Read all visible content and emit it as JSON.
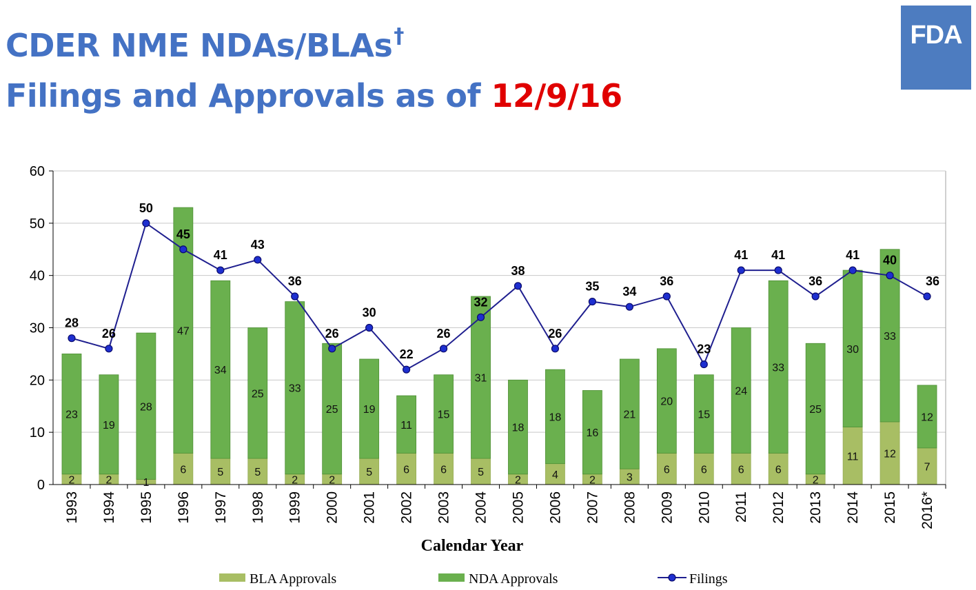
{
  "header": {
    "title_line1": "CDER NME NDAs/BLAs",
    "title_dagger": "†",
    "title_line2_prefix": "Filings and Approvals as of ",
    "title_line2_date": "12/9/16",
    "title_color": "#4472C4",
    "date_color": "#E00000"
  },
  "logo": {
    "text": "FDA",
    "color": "#4D7CC0"
  },
  "chart_data": {
    "type": "bar",
    "stacked": true,
    "categories": [
      "1993",
      "1994",
      "1995",
      "1996",
      "1997",
      "1998",
      "1999",
      "2000",
      "2001",
      "2002",
      "2003",
      "2004",
      "2005",
      "2006",
      "2007",
      "2008",
      "2009",
      "2010",
      "2011",
      "2012",
      "2013",
      "2014",
      "2015",
      "2016*"
    ],
    "series": [
      {
        "name": "BLA Approvals",
        "kind": "bar",
        "color": "#A8BE64",
        "values": [
          2,
          2,
          1,
          6,
          5,
          5,
          2,
          2,
          5,
          6,
          6,
          5,
          2,
          4,
          2,
          3,
          6,
          6,
          6,
          6,
          2,
          11,
          12,
          7
        ]
      },
      {
        "name": "NDA Approvals",
        "kind": "bar",
        "color": "#6AB04E",
        "values": [
          23,
          19,
          28,
          47,
          34,
          25,
          33,
          25,
          19,
          11,
          15,
          31,
          18,
          18,
          16,
          21,
          20,
          15,
          24,
          33,
          25,
          30,
          33,
          12
        ]
      },
      {
        "name": "Filings",
        "kind": "line",
        "color": "#1F1F8F",
        "values": [
          28,
          26,
          50,
          45,
          41,
          43,
          36,
          26,
          30,
          22,
          26,
          32,
          38,
          26,
          35,
          34,
          36,
          23,
          41,
          41,
          36,
          41,
          40,
          36
        ]
      }
    ],
    "title": "",
    "xlabel": "Calendar Year",
    "ylabel": "",
    "ylim": [
      0,
      60
    ],
    "yticks": [
      0,
      10,
      20,
      30,
      40,
      50,
      60
    ],
    "grid": true,
    "legend": "bottom"
  }
}
